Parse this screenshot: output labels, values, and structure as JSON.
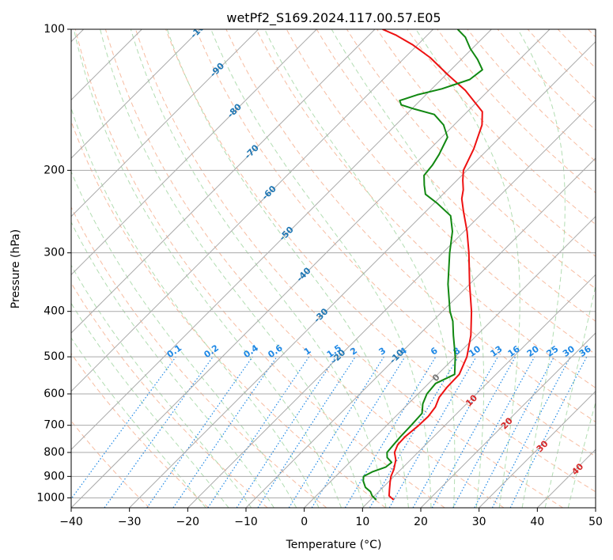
{
  "chart_data": {
    "type": "line",
    "subtype": "skew-T log-P diagram",
    "title": "wetPf2_S169.2024.117.00.57.E05",
    "xlabel": "Temperature (°C)",
    "ylabel": "Pressure (hPa)",
    "xlim": [
      -40,
      50
    ],
    "ylim": [
      1050,
      100
    ],
    "y_scale": "log",
    "grid": true,
    "x_ticks": [
      -40,
      -30,
      -20,
      -10,
      0,
      10,
      20,
      30,
      40,
      50
    ],
    "y_ticks": [
      100,
      200,
      300,
      400,
      500,
      600,
      700,
      800,
      900,
      1000
    ],
    "skewed_isotherms": [
      -100,
      -90,
      -80,
      -70,
      -60,
      -50,
      -40,
      -30,
      -20,
      -10,
      0,
      10,
      20,
      30,
      40
    ],
    "mixing_ratio_labels": [
      "0.1",
      "0.2",
      "0.4",
      "0.6",
      "1",
      "1.5",
      "2",
      "3",
      "4",
      "6",
      "8",
      "10",
      "13",
      "16",
      "20",
      "25",
      "30",
      "36"
    ],
    "colors": {
      "temperature": "#ee1111",
      "dewpoint": "#118811",
      "dry_adiabat": "#f4a582",
      "moist_adiabat": "#9fd59f",
      "mixing_ratio": "#1e88e5",
      "isotherm": "#aaaaaa",
      "isotherm_label_cold": "#1f77b4",
      "isotherm_label_warm": "#d62728"
    },
    "series": [
      {
        "type": "temperature",
        "points": [
          {
            "p": 1010,
            "t": 14.0
          },
          {
            "p": 990,
            "t": 12.5
          },
          {
            "p": 960,
            "t": 11.5
          },
          {
            "p": 925,
            "t": 10.3
          },
          {
            "p": 900,
            "t": 9.5
          },
          {
            "p": 870,
            "t": 8.8
          },
          {
            "p": 830,
            "t": 7.5
          },
          {
            "p": 800,
            "t": 6.0
          },
          {
            "p": 770,
            "t": 5.2
          },
          {
            "p": 740,
            "t": 5.1
          },
          {
            "p": 700,
            "t": 5.5
          },
          {
            "p": 670,
            "t": 5.6
          },
          {
            "p": 640,
            "t": 5.2
          },
          {
            "p": 610,
            "t": 4.2
          },
          {
            "p": 580,
            "t": 3.8
          },
          {
            "p": 545,
            "t": 3.7
          },
          {
            "p": 500,
            "t": 2.0
          },
          {
            "p": 450,
            "t": -1.0
          },
          {
            "p": 400,
            "t": -5.0
          },
          {
            "p": 350,
            "t": -10.0
          },
          {
            "p": 300,
            "t": -15.5
          },
          {
            "p": 270,
            "t": -19.5
          },
          {
            "p": 245,
            "t": -23.5
          },
          {
            "p": 230,
            "t": -26.0
          },
          {
            "p": 220,
            "t": -27.3
          },
          {
            "p": 210,
            "t": -29.0
          },
          {
            "p": 200,
            "t": -30.6
          },
          {
            "p": 180,
            "t": -32.5
          },
          {
            "p": 160,
            "t": -35.2
          },
          {
            "p": 150,
            "t": -37.4
          },
          {
            "p": 135,
            "t": -44.0
          },
          {
            "p": 125,
            "t": -49.7
          },
          {
            "p": 115,
            "t": -55.6
          },
          {
            "p": 108,
            "t": -60.8
          },
          {
            "p": 103,
            "t": -65.3
          },
          {
            "p": 100,
            "t": -68.7
          }
        ]
      },
      {
        "type": "dewpoint",
        "points": [
          {
            "p": 1010,
            "t": 11.0
          },
          {
            "p": 990,
            "t": 9.6
          },
          {
            "p": 970,
            "t": 8.6
          },
          {
            "p": 950,
            "t": 7.0
          },
          {
            "p": 920,
            "t": 5.5
          },
          {
            "p": 900,
            "t": 4.8
          },
          {
            "p": 880,
            "t": 5.5
          },
          {
            "p": 860,
            "t": 7.0
          },
          {
            "p": 840,
            "t": 7.2
          },
          {
            "p": 820,
            "t": 5.6
          },
          {
            "p": 800,
            "t": 4.7
          },
          {
            "p": 770,
            "t": 4.5
          },
          {
            "p": 740,
            "t": 4.3
          },
          {
            "p": 700,
            "t": 4.2
          },
          {
            "p": 660,
            "t": 4.0
          },
          {
            "p": 630,
            "t": 2.5
          },
          {
            "p": 600,
            "t": 1.5
          },
          {
            "p": 570,
            "t": 1.2
          },
          {
            "p": 545,
            "t": 2.9
          },
          {
            "p": 500,
            "t": 0.0
          },
          {
            "p": 450,
            "t": -4.0
          },
          {
            "p": 420,
            "t": -6.5
          },
          {
            "p": 400,
            "t": -8.7
          },
          {
            "p": 350,
            "t": -13.7
          },
          {
            "p": 300,
            "t": -18.8
          },
          {
            "p": 270,
            "t": -22.0
          },
          {
            "p": 250,
            "t": -25.0
          },
          {
            "p": 235,
            "t": -29.5
          },
          {
            "p": 225,
            "t": -33.0
          },
          {
            "p": 215,
            "t": -34.8
          },
          {
            "p": 205,
            "t": -36.5
          },
          {
            "p": 195,
            "t": -36.8
          },
          {
            "p": 185,
            "t": -37.5
          },
          {
            "p": 170,
            "t": -39.0
          },
          {
            "p": 160,
            "t": -41.8
          },
          {
            "p": 152,
            "t": -45.2
          },
          {
            "p": 148,
            "t": -49.5
          },
          {
            "p": 145,
            "t": -52.5
          },
          {
            "p": 142,
            "t": -53.5
          },
          {
            "p": 138,
            "t": -51.5
          },
          {
            "p": 134,
            "t": -48.3
          },
          {
            "p": 128,
            "t": -45.1
          },
          {
            "p": 122,
            "t": -44.6
          },
          {
            "p": 116,
            "t": -47.2
          },
          {
            "p": 110,
            "t": -50.3
          },
          {
            "p": 104,
            "t": -53.1
          },
          {
            "p": 100,
            "t": -55.8
          }
        ]
      }
    ]
  }
}
